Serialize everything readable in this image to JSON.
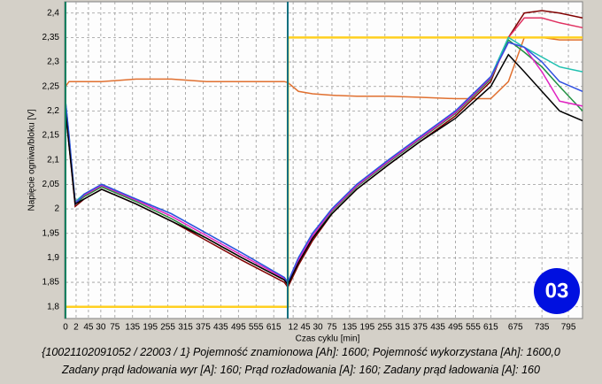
{
  "chart_data": {
    "type": "line",
    "ylabel": "Napięcie ogniwa/bloku [V]",
    "xlabel": "Czas cyklu [min]",
    "badge": "03",
    "footer": [
      "{10021102091052 / 22003 / 1} Pojemność znamionowa [Ah]: 1600;  Pojemność wykorzystana [Ah]: 1600,0",
      "Zadany prąd ładowania wyr [A]: 160;  Prąd rozładowania [A]: 160;  Zadany prąd ładowania [A]: 160"
    ],
    "grid": true,
    "ylim": [
      1.776,
      2.423
    ],
    "yticks": [
      {
        "value": 1.8,
        "label": "1,8"
      },
      {
        "value": 1.85,
        "label": "1,85"
      },
      {
        "value": 1.9,
        "label": "1,9"
      },
      {
        "value": 1.95,
        "label": "1,95"
      },
      {
        "value": 2,
        "label": "2"
      },
      {
        "value": 2.05,
        "label": "2,05"
      },
      {
        "value": 2.1,
        "label": "2,1"
      },
      {
        "value": 2.15,
        "label": "2,15"
      },
      {
        "value": 2.2,
        "label": "2,2"
      },
      {
        "value": 2.25,
        "label": "2,25"
      },
      {
        "value": 2.3,
        "label": "2,3"
      },
      {
        "value": 2.35,
        "label": "2,35"
      },
      {
        "value": 2.4,
        "label": "2,4"
      }
    ],
    "xlim": [
      0,
      29.3
    ],
    "xticks": [
      {
        "value": 0,
        "label": "0"
      },
      {
        "value": 0.6,
        "label": "2"
      },
      {
        "value": 1.3,
        "label": "45"
      },
      {
        "value": 2,
        "label": "30"
      },
      {
        "value": 2.8,
        "label": "75"
      },
      {
        "value": 3.8,
        "label": "135"
      },
      {
        "value": 4.8,
        "label": "195"
      },
      {
        "value": 5.8,
        "label": "255"
      },
      {
        "value": 6.8,
        "label": "315"
      },
      {
        "value": 7.8,
        "label": "375"
      },
      {
        "value": 8.8,
        "label": "435"
      },
      {
        "value": 9.8,
        "label": "495"
      },
      {
        "value": 10.8,
        "label": "555"
      },
      {
        "value": 11.8,
        "label": "615"
      },
      {
        "value": 12.9,
        "label": "12"
      },
      {
        "value": 13.6,
        "label": "45"
      },
      {
        "value": 14.3,
        "label": "30"
      },
      {
        "value": 15.1,
        "label": "75"
      },
      {
        "value": 16.1,
        "label": "135"
      },
      {
        "value": 17.1,
        "label": "195"
      },
      {
        "value": 18.1,
        "label": "255"
      },
      {
        "value": 19.1,
        "label": "315"
      },
      {
        "value": 20.1,
        "label": "375"
      },
      {
        "value": 21.1,
        "label": "435"
      },
      {
        "value": 22.1,
        "label": "495"
      },
      {
        "value": 23.1,
        "label": "555"
      },
      {
        "value": 24.1,
        "label": "615"
      },
      {
        "value": 25.5,
        "label": "675"
      },
      {
        "value": 27,
        "label": "735"
      },
      {
        "value": 28.5,
        "label": "795"
      }
    ],
    "x": [
      0,
      0.2,
      0.55,
      1.05,
      2.05,
      4,
      6,
      8,
      10,
      12.4,
      12.6,
      13.2,
      14,
      15.1,
      16.5,
      18.3,
      20,
      22.1,
      24.1,
      25.1,
      26,
      27,
      28,
      29.3
    ],
    "series": [
      {
        "color": "#e07030",
        "values": [
          2.25,
          2.26,
          2.26,
          2.26,
          2.26,
          2.265,
          2.265,
          2.26,
          2.26,
          2.26,
          2.258,
          2.24,
          2.235,
          2.232,
          2.23,
          2.23,
          2.228,
          2.225,
          2.225,
          2.26,
          2.35,
          2.35,
          2.345,
          2.345
        ]
      },
      {
        "color": "#ffd020",
        "x": [
          0,
          12.6,
          12.6,
          29.3
        ],
        "values": [
          1.8,
          1.8,
          2.35,
          2.35
        ]
      },
      {
        "color": "#800000",
        "values": [
          2.2,
          2.13,
          2.005,
          2.02,
          2.04,
          2.01,
          1.975,
          1.935,
          1.895,
          1.85,
          1.84,
          1.885,
          1.935,
          1.99,
          2.04,
          2.09,
          2.135,
          2.19,
          2.26,
          2.35,
          2.4,
          2.405,
          2.4,
          2.39
        ]
      },
      {
        "color": "#e03060",
        "values": [
          2.21,
          2.14,
          2.01,
          2.025,
          2.045,
          2.015,
          1.98,
          1.94,
          1.9,
          1.855,
          1.845,
          1.89,
          1.94,
          1.995,
          2.045,
          2.095,
          2.14,
          2.195,
          2.265,
          2.35,
          2.39,
          2.39,
          2.38,
          2.37
        ]
      },
      {
        "color": "#209040",
        "values": [
          2.21,
          2.14,
          2.01,
          2.025,
          2.045,
          2.015,
          1.98,
          1.94,
          1.9,
          1.855,
          1.845,
          1.89,
          1.94,
          1.995,
          2.045,
          2.095,
          2.14,
          2.195,
          2.265,
          2.345,
          2.32,
          2.29,
          2.25,
          2.2
        ]
      },
      {
        "color": "#20c0b0",
        "values": [
          2.22,
          2.15,
          2.015,
          2.03,
          2.05,
          2.02,
          1.99,
          1.95,
          1.91,
          1.86,
          1.85,
          1.9,
          1.95,
          2.0,
          2.05,
          2.1,
          2.145,
          2.2,
          2.27,
          2.35,
          2.33,
          2.31,
          2.29,
          2.28
        ]
      },
      {
        "color": "#e020c0",
        "values": [
          2.215,
          2.145,
          2.012,
          2.028,
          2.048,
          2.018,
          1.985,
          1.945,
          1.905,
          1.858,
          1.848,
          1.895,
          1.945,
          1.997,
          2.047,
          2.097,
          2.142,
          2.197,
          2.268,
          2.34,
          2.33,
          2.28,
          2.22,
          2.21
        ]
      },
      {
        "color": "#3050e0",
        "values": [
          2.22,
          2.15,
          2.01,
          2.03,
          2.05,
          2.02,
          1.99,
          1.95,
          1.91,
          1.86,
          1.85,
          1.9,
          1.95,
          2.0,
          2.05,
          2.1,
          2.145,
          2.2,
          2.27,
          2.34,
          2.33,
          2.3,
          2.26,
          2.24
        ]
      },
      {
        "color": "#000000",
        "values": [
          2.2,
          2.13,
          2.01,
          2.02,
          2.04,
          2.01,
          1.975,
          1.94,
          1.9,
          1.855,
          1.845,
          1.89,
          1.94,
          1.99,
          2.04,
          2.09,
          2.135,
          2.185,
          2.25,
          2.315,
          2.28,
          2.24,
          2.2,
          2.18
        ]
      }
    ]
  }
}
